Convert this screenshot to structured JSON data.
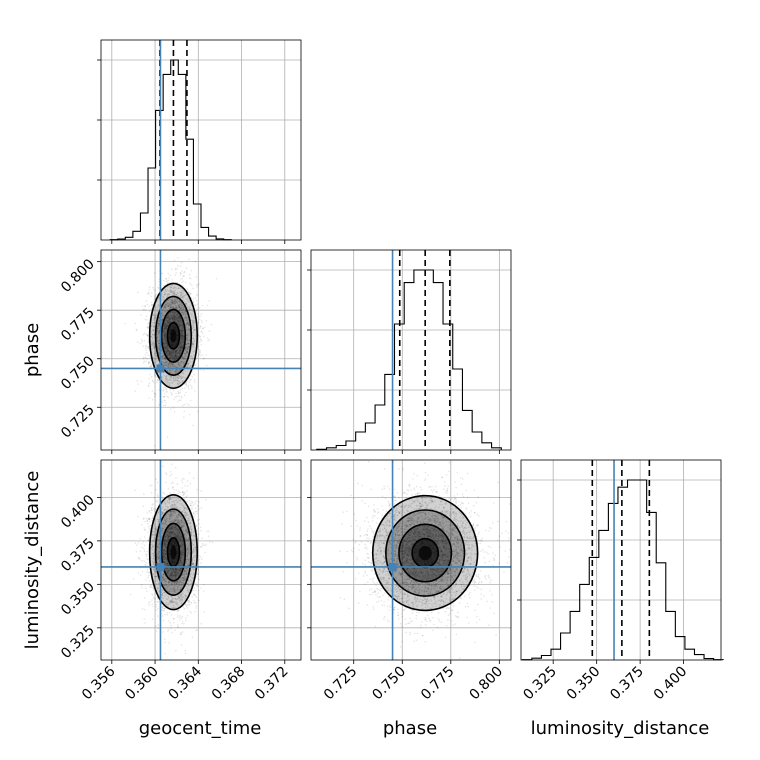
{
  "chart_data": {
    "type": "corner",
    "truths": {
      "geocent_time": 0.3605,
      "phase": 0.745,
      "luminosity_distance": 0.36
    },
    "truth_color": "#4682b4",
    "grid": true,
    "parameters": [
      {
        "name": "geocent_time",
        "xlabel": "geocent_time",
        "range": [
          0.355,
          0.3735
        ],
        "ticks": [
          0.356,
          0.36,
          0.364,
          0.368,
          0.372
        ],
        "tick_labels": [
          "0.356",
          "0.360",
          "0.364",
          "0.368",
          "0.372"
        ],
        "quantiles": [
          0.36045,
          0.3617,
          0.36295
        ],
        "hist_x": [
          0.3562,
          0.3569,
          0.3576,
          0.3583,
          0.359,
          0.3597,
          0.3604,
          0.3611,
          0.3618,
          0.3625,
          0.3632,
          0.3639,
          0.3646,
          0.3653,
          0.366,
          0.3667
        ],
        "hist_counts": [
          2,
          5,
          15,
          48,
          150,
          400,
          720,
          920,
          1000,
          920,
          560,
          200,
          70,
          22,
          6,
          2
        ]
      },
      {
        "name": "phase",
        "xlabel": "phase",
        "ylabel": "phase",
        "range": [
          0.703,
          0.806
        ],
        "ticks": [
          0.725,
          0.75,
          0.775,
          0.8
        ],
        "tick_labels": [
          "0.725",
          "0.750",
          "0.775",
          "0.800"
        ],
        "quantiles": [
          0.7487,
          0.7618,
          0.7745
        ],
        "hist_x": [
          0.7085,
          0.7135,
          0.7185,
          0.7235,
          0.7285,
          0.7335,
          0.7385,
          0.7435,
          0.7485,
          0.7535,
          0.7585,
          0.7635,
          0.7685,
          0.7735,
          0.7785,
          0.7835,
          0.7885,
          0.7935,
          0.7985
        ],
        "hist_counts": [
          4,
          12,
          25,
          50,
          100,
          150,
          250,
          420,
          700,
          930,
          1000,
          1000,
          930,
          700,
          450,
          220,
          100,
          40,
          12
        ]
      },
      {
        "name": "luminosity_distance",
        "xlabel": "luminosity_distance",
        "ylabel": "luminosity_distance",
        "range": [
          0.3065,
          0.4215
        ],
        "ticks": [
          0.325,
          0.35,
          0.375,
          0.4
        ],
        "tick_labels": [
          "0.325",
          "0.350",
          "0.375",
          "0.400"
        ],
        "quantiles": [
          0.3475,
          0.3645,
          0.3803
        ],
        "hist_x": [
          0.31,
          0.3155,
          0.321,
          0.3265,
          0.332,
          0.3375,
          0.343,
          0.3485,
          0.354,
          0.3595,
          0.365,
          0.3705,
          0.376,
          0.3815,
          0.387,
          0.3925,
          0.398,
          0.4035,
          0.409,
          0.4145,
          0.42
        ],
        "hist_counts": [
          2,
          10,
          25,
          60,
          150,
          270,
          420,
          570,
          720,
          870,
          960,
          1000,
          1000,
          820,
          540,
          270,
          130,
          60,
          30,
          8,
          2
        ]
      }
    ],
    "scatter_pairs": [
      {
        "x": "geocent_time",
        "y": "phase",
        "mean": [
          0.3617,
          0.7618
        ],
        "sd": [
          0.0011,
          0.0135
        ],
        "n": 3000
      },
      {
        "x": "geocent_time",
        "y": "luminosity_distance",
        "mean": [
          0.3617,
          0.3685
        ],
        "sd": [
          0.0011,
          0.0165
        ],
        "n": 3000
      },
      {
        "x": "phase",
        "y": "luminosity_distance",
        "mean": [
          0.7618,
          0.368
        ],
        "sd": [
          0.0135,
          0.0165
        ],
        "n": 4000
      }
    ]
  }
}
